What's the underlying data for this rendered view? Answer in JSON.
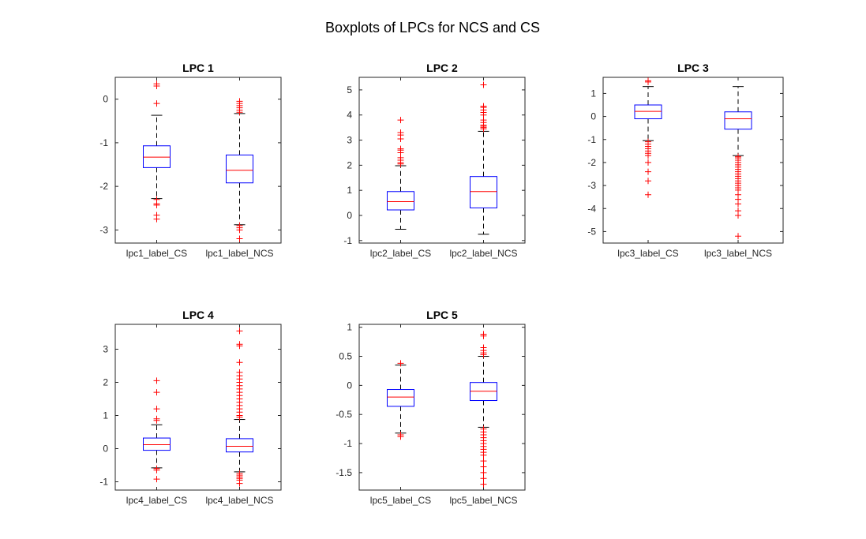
{
  "figure": {
    "title": "Boxplots of LPCs for NCS and CS"
  },
  "colors": {
    "box": "#0000ff",
    "median": "#ff0000",
    "whisker": "#000000",
    "outlier": "#ff0000",
    "axes": "#262626"
  },
  "chart_data": [
    {
      "type": "boxplot",
      "title": "LPC 1",
      "ylim": [
        -3.3,
        0.5
      ],
      "yticks": [
        0,
        -1,
        -2,
        -3
      ],
      "categories": [
        "lpc1_label_CS",
        "lpc1_label_NCS"
      ],
      "boxes": [
        {
          "whisker_low": -2.28,
          "q1": -1.57,
          "median": -1.33,
          "q3": -1.07,
          "whisker_high": -0.37,
          "outliers": [
            0.35,
            0.3,
            -0.1,
            -2.3,
            -2.4,
            -2.43,
            -2.66,
            -2.75
          ]
        },
        {
          "whisker_low": -2.88,
          "q1": -1.92,
          "median": -1.63,
          "q3": -1.28,
          "whisker_high": -0.33,
          "outliers": [
            -0.05,
            -0.1,
            -0.15,
            -0.2,
            -0.25,
            -0.3,
            -2.9,
            -2.95,
            -3.0,
            -3.2
          ]
        }
      ]
    },
    {
      "type": "boxplot",
      "title": "LPC 2",
      "ylim": [
        -1.1,
        5.5
      ],
      "yticks": [
        5,
        4,
        3,
        2,
        1,
        0,
        -1
      ],
      "categories": [
        "lpc2_label_CS",
        "lpc2_label_NCS"
      ],
      "boxes": [
        {
          "whisker_low": -0.55,
          "q1": 0.22,
          "median": 0.55,
          "q3": 0.95,
          "whisker_high": 1.98,
          "outliers": [
            2.05,
            2.1,
            2.2,
            2.3,
            2.5,
            2.6,
            2.65,
            3.05,
            3.2,
            3.3,
            3.8
          ]
        },
        {
          "whisker_low": -0.75,
          "q1": 0.3,
          "median": 0.95,
          "q3": 1.55,
          "whisker_high": 3.35,
          "outliers": [
            3.45,
            3.5,
            3.55,
            3.6,
            3.7,
            3.8,
            4.0,
            4.1,
            4.2,
            4.3,
            4.35,
            5.2
          ]
        }
      ]
    },
    {
      "type": "boxplot",
      "title": "LPC 3",
      "ylim": [
        -5.5,
        1.7
      ],
      "yticks": [
        1,
        0,
        -1,
        -2,
        -3,
        -4,
        -5
      ],
      "categories": [
        "lpc3_label_CS",
        "lpc3_label_NCS"
      ],
      "boxes": [
        {
          "whisker_low": -1.05,
          "q1": -0.1,
          "median": 0.22,
          "q3": 0.5,
          "whisker_high": 1.3,
          "outliers": [
            1.5,
            1.55,
            -1.1,
            -1.2,
            -1.3,
            -1.4,
            -1.5,
            -1.6,
            -1.7,
            -2.0,
            -2.4,
            -2.8,
            -3.4
          ]
        },
        {
          "whisker_low": -1.7,
          "q1": -0.55,
          "median": -0.1,
          "q3": 0.2,
          "whisker_high": 1.3,
          "outliers": [
            -1.75,
            -1.8,
            -1.9,
            -2.0,
            -2.1,
            -2.2,
            -2.3,
            -2.4,
            -2.5,
            -2.6,
            -2.7,
            -2.8,
            -2.9,
            -3.0,
            -3.1,
            -3.2,
            -3.4,
            -3.6,
            -3.8,
            -4.1,
            -4.3,
            -5.2
          ]
        }
      ]
    },
    {
      "type": "boxplot",
      "title": "LPC 4",
      "ylim": [
        -1.25,
        3.75
      ],
      "yticks": [
        3,
        2,
        1,
        0,
        -1
      ],
      "categories": [
        "lpc4_label_CS",
        "lpc4_label_NCS"
      ],
      "boxes": [
        {
          "whisker_low": -0.58,
          "q1": -0.05,
          "median": 0.12,
          "q3": 0.32,
          "whisker_high": 0.72,
          "outliers": [
            0.85,
            0.9,
            1.2,
            1.7,
            2.05,
            -0.6,
            -0.65,
            -0.92
          ]
        },
        {
          "whisker_low": -0.7,
          "q1": -0.1,
          "median": 0.07,
          "q3": 0.3,
          "whisker_high": 0.88,
          "outliers": [
            0.95,
            1.0,
            1.1,
            1.2,
            1.3,
            1.4,
            1.5,
            1.6,
            1.7,
            1.8,
            1.9,
            2.0,
            2.1,
            2.2,
            2.3,
            2.6,
            3.1,
            3.15,
            3.55,
            -0.75,
            -0.8,
            -0.85,
            -0.9,
            -0.95,
            -1.05
          ]
        }
      ]
    },
    {
      "type": "boxplot",
      "title": "LPC 5",
      "ylim": [
        -1.8,
        1.05
      ],
      "yticks": [
        1,
        0.5,
        0,
        -0.5,
        -1,
        -1.5
      ],
      "categories": [
        "lpc5_label_CS",
        "lpc5_label_NCS"
      ],
      "boxes": [
        {
          "whisker_low": -0.82,
          "q1": -0.36,
          "median": -0.2,
          "q3": -0.07,
          "whisker_high": 0.35,
          "outliers": [
            0.38,
            -0.85,
            -0.88
          ]
        },
        {
          "whisker_low": -0.72,
          "q1": -0.26,
          "median": -0.1,
          "q3": 0.05,
          "whisker_high": 0.5,
          "outliers": [
            0.53,
            0.56,
            0.6,
            0.65,
            0.85,
            0.88,
            -0.75,
            -0.8,
            -0.85,
            -0.9,
            -0.95,
            -1.0,
            -1.05,
            -1.1,
            -1.15,
            -1.2,
            -1.3,
            -1.4,
            -1.5,
            -1.6,
            -1.7
          ]
        }
      ]
    }
  ]
}
